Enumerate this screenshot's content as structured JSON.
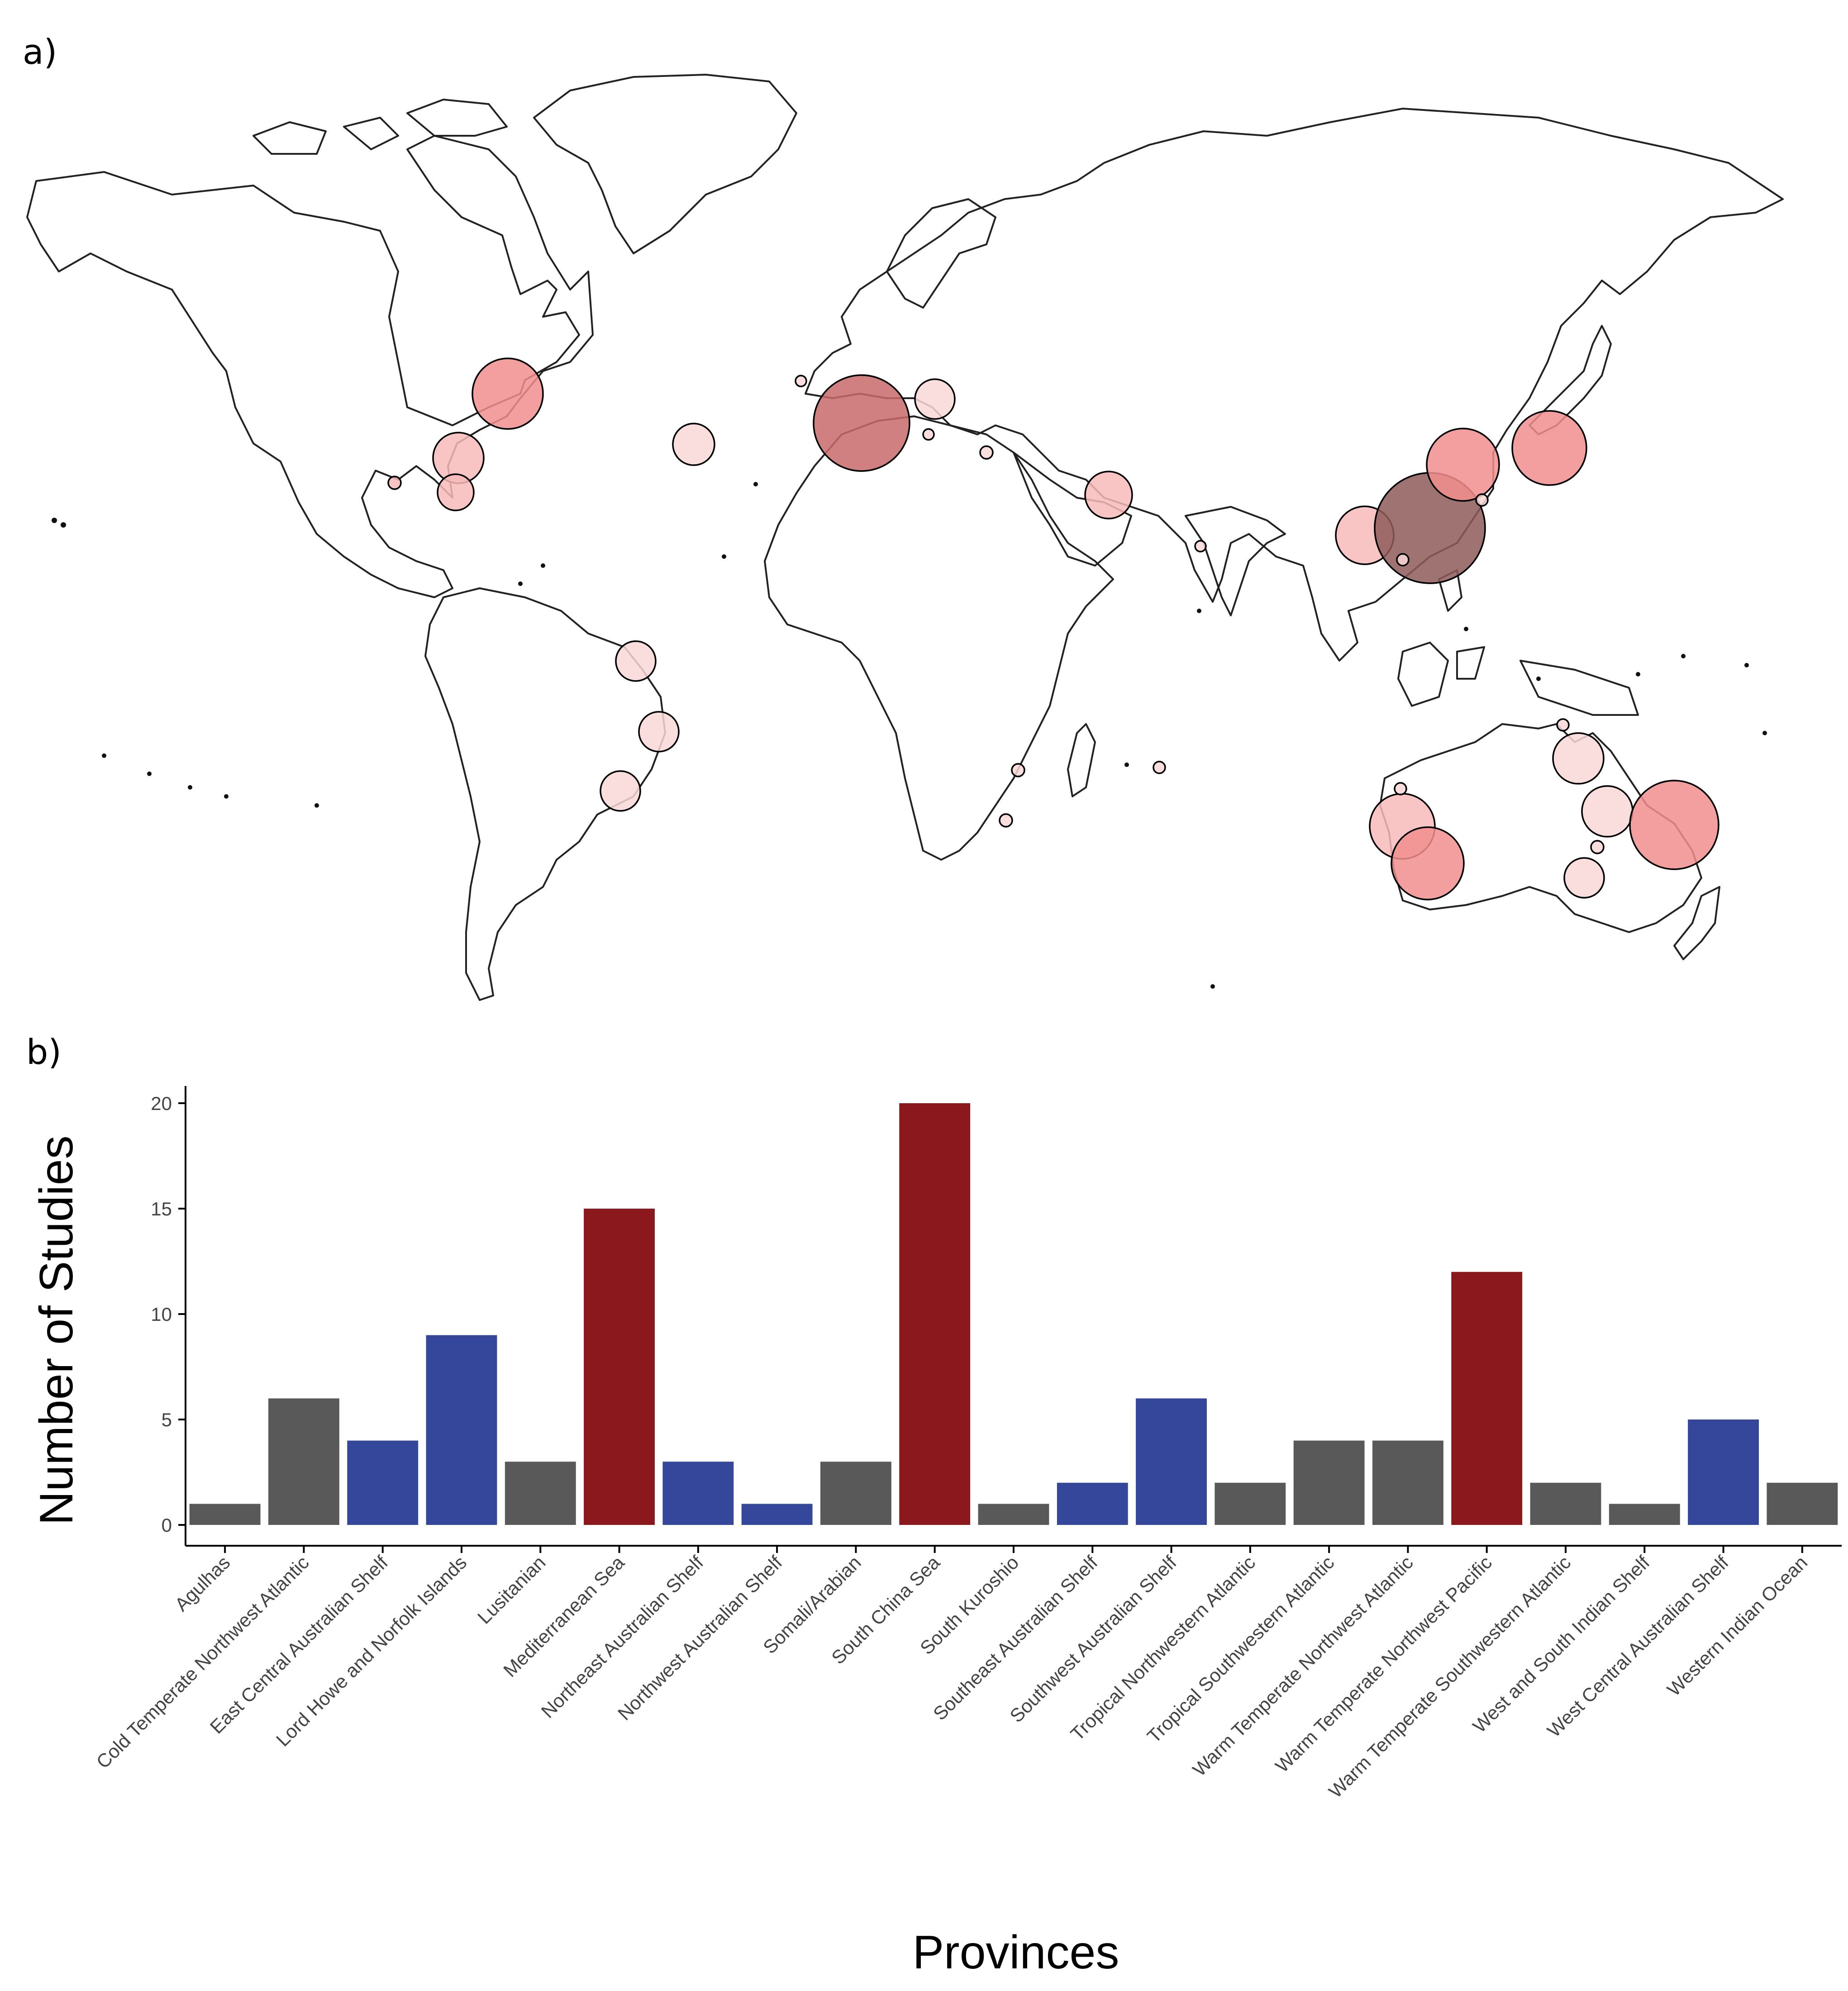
{
  "panels": {
    "a": "a)",
    "b": "b)"
  },
  "map": {
    "bubble_palette": [
      "#f9d8d8",
      "#f7baba",
      "#f28e8e",
      "#c86a6a",
      "#8f5a5a"
    ]
  },
  "colors": {
    "grey": "#595959",
    "blue": "#34479b",
    "red": "#8b181d"
  },
  "chart_data": {
    "type": "bar",
    "xlabel": "Provinces",
    "ylabel": "Number of Studies",
    "ylim": [
      0,
      21
    ],
    "yticks": [
      0,
      5,
      10,
      15,
      20
    ],
    "grid": false,
    "categories": [
      "Agulhas",
      "Cold Temperate Northwest Atlantic",
      "East Central Australian Shelf",
      "Lord Howe and Norfolk Islands",
      "Lusitanian",
      "Mediterranean Sea",
      "Northeast Australian Shelf",
      "Northwest Australian Shelf",
      "Somali/Arabian",
      "South China Sea",
      "South Kuroshio",
      "Southeast Australian Shelf",
      "Southwest Australian Shelf",
      "Tropical Northwestern Atlantic",
      "Tropical Southwestern Atlantic",
      "Warm Temperate Northwest Atlantic",
      "Warm Temperate Northwest Pacific",
      "Warm Temperate Southwestern Atlantic",
      "West and South Indian Shelf",
      "West Central Australian Shelf",
      "Western Indian Ocean"
    ],
    "values": [
      1,
      6,
      4,
      9,
      3,
      15,
      3,
      1,
      3,
      20,
      1,
      2,
      6,
      2,
      4,
      4,
      12,
      2,
      1,
      5,
      2
    ],
    "bar_colors": [
      "grey",
      "grey",
      "blue",
      "blue",
      "grey",
      "red",
      "blue",
      "blue",
      "grey",
      "red",
      "grey",
      "blue",
      "blue",
      "grey",
      "grey",
      "grey",
      "red",
      "grey",
      "grey",
      "blue",
      "grey"
    ]
  }
}
